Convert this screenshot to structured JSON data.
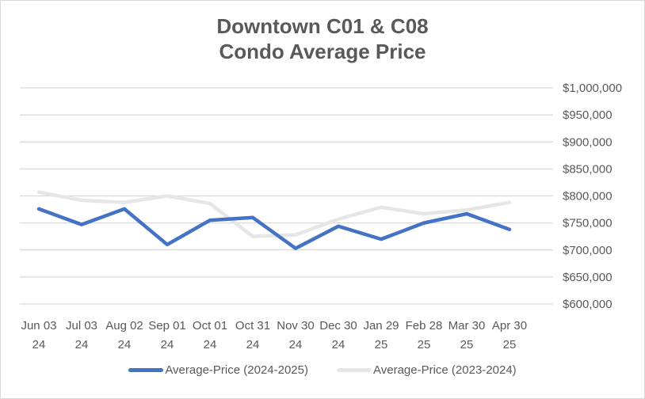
{
  "chart_data": {
    "type": "line",
    "title": "Downtown C01 & C08 Condo Average Price",
    "title_lines": [
      "Downtown C01 & C08",
      "Condo Average Price"
    ],
    "xlabel": "",
    "ylabel": "",
    "categories": [
      [
        "Jun 03",
        "24"
      ],
      [
        "Jul 03",
        "24"
      ],
      [
        "Aug 02",
        "24"
      ],
      [
        "Sep 01",
        "24"
      ],
      [
        "Oct 01",
        "24"
      ],
      [
        "Oct 31",
        "24"
      ],
      [
        "Nov 30",
        "24"
      ],
      [
        "Dec 30",
        "24"
      ],
      [
        "Jan 29",
        "25"
      ],
      [
        "Feb 28",
        "25"
      ],
      [
        "Mar 30",
        "25"
      ],
      [
        "Apr 30",
        "25"
      ]
    ],
    "ylim": [
      600000,
      1000000
    ],
    "yticks": [
      1000000,
      950000,
      900000,
      850000,
      800000,
      750000,
      700000,
      650000,
      600000
    ],
    "ytick_labels": [
      "$1,000,000",
      "$950,000",
      "$900,000",
      "$850,000",
      "$800,000",
      "$750,000",
      "$700,000",
      "$650,000",
      "$600,000"
    ],
    "y_axis_side": "right",
    "grid": true,
    "legend_position": "bottom",
    "series": [
      {
        "name": "Average-Price (2023-2024)",
        "color": "#e7e6e6",
        "values": [
          807000,
          792000,
          788000,
          800000,
          786000,
          725000,
          728000,
          757000,
          779000,
          767000,
          774000,
          788000
        ]
      },
      {
        "name": "Average-Price (2024-2025)",
        "color": "#4472c4",
        "values": [
          776000,
          747000,
          776000,
          710000,
          755000,
          760000,
          703000,
          744000,
          720000,
          750000,
          767000,
          738000
        ]
      }
    ],
    "legend": [
      "Average-Price (2024-2025)",
      "Average-Price (2023-2024)"
    ]
  }
}
